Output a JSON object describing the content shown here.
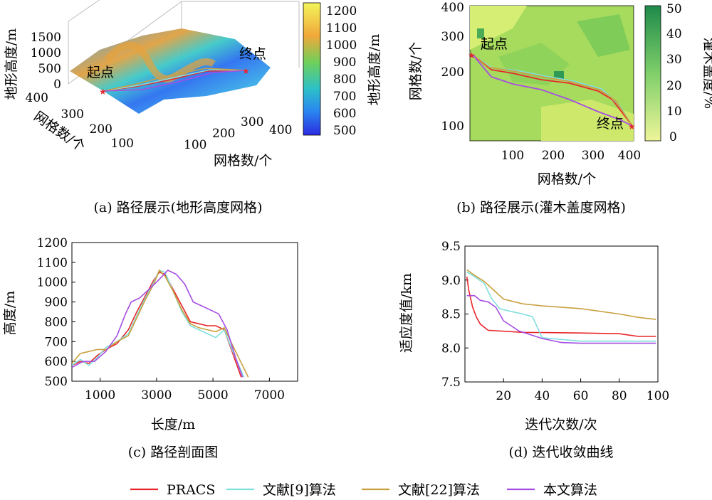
{
  "series": [
    {
      "name": "PRACS",
      "color": "#e8262b"
    },
    {
      "name": "文献[9]算法",
      "color": "#7fe0de"
    },
    {
      "name": "文献[22]算法",
      "color": "#c9a03f"
    },
    {
      "name": "本文算法",
      "color": "#a64de2"
    }
  ],
  "panel_a": {
    "caption": "(a) 路径展示(地形高度网格)",
    "zlabel": "地形高度/m",
    "ylabel": "网格数/个",
    "xlabel": "网格数/个",
    "zticks": [
      "0",
      "500",
      "1000",
      "1500"
    ],
    "yticks": [
      "400",
      "300",
      "200",
      "100"
    ],
    "xticks": [
      "100",
      "200",
      "300",
      "400"
    ],
    "start": "起点",
    "end": "终点",
    "colorbar_label": "地形高度/m",
    "colorbar_ticks": [
      "1200",
      "1100",
      "1000",
      "900",
      "800",
      "700",
      "600",
      "500"
    ]
  },
  "panel_b": {
    "caption": "(b) 路径展示(灌木盖度网格)",
    "ylabel": "网格数/个",
    "xlabel": "网格数/个",
    "yticks": [
      "400",
      "300",
      "200",
      "100"
    ],
    "xticks": [
      "100",
      "200",
      "300",
      "400"
    ],
    "start": "起点",
    "end": "终点",
    "colorbar_label": "灌木盖度/%",
    "colorbar_ticks": [
      "50",
      "40",
      "30",
      "20",
      "10",
      "0"
    ]
  },
  "chart_data": [
    {
      "type": "line",
      "panel": "c",
      "caption": "(c) 路径剖面图",
      "xlabel": "长度/m",
      "ylabel": "高度/m",
      "xlim": [
        0,
        8000
      ],
      "ylim": [
        500,
        1200
      ],
      "xticks": [
        1000,
        3000,
        5000,
        7000
      ],
      "yticks": [
        500,
        600,
        700,
        800,
        900,
        1000,
        1100,
        1200
      ],
      "series": [
        {
          "name": "PRACS",
          "x": [
            0,
            300,
            600,
            900,
            1200,
            1600,
            2000,
            2300,
            2600,
            2900,
            3100,
            3300,
            3600,
            3900,
            4200,
            4500,
            4800,
            5100,
            5400,
            5700,
            6000
          ],
          "y": [
            580,
            600,
            590,
            630,
            660,
            690,
            760,
            850,
            930,
            1010,
            1050,
            1040,
            960,
            880,
            800,
            790,
            780,
            780,
            760,
            640,
            520
          ]
        },
        {
          "name": "文献[9]算法",
          "x": [
            0,
            300,
            600,
            900,
            1200,
            1600,
            2000,
            2300,
            2600,
            2900,
            3100,
            3300,
            3600,
            3900,
            4200,
            4500,
            4800,
            5100,
            5400,
            5700,
            6100
          ],
          "y": [
            580,
            610,
            580,
            620,
            670,
            700,
            740,
            830,
            920,
            1000,
            1060,
            1050,
            950,
            850,
            780,
            760,
            740,
            720,
            760,
            650,
            520
          ]
        },
        {
          "name": "文献[22]算法",
          "x": [
            0,
            300,
            600,
            900,
            1200,
            1600,
            2000,
            2300,
            2600,
            2900,
            3100,
            3300,
            3600,
            3900,
            4200,
            4500,
            4800,
            5100,
            5400,
            5700,
            6250
          ],
          "y": [
            590,
            640,
            650,
            660,
            660,
            700,
            730,
            820,
            910,
            990,
            1060,
            1030,
            950,
            860,
            790,
            770,
            760,
            750,
            770,
            680,
            520
          ]
        },
        {
          "name": "本文算法",
          "x": [
            0,
            400,
            800,
            1200,
            1600,
            1900,
            2100,
            2400,
            2700,
            3000,
            3200,
            3400,
            3700,
            4000,
            4300,
            4600,
            4900,
            5200,
            5500,
            5800,
            6050
          ],
          "y": [
            570,
            600,
            600,
            650,
            730,
            840,
            900,
            920,
            960,
            1000,
            1030,
            1060,
            1040,
            990,
            900,
            880,
            860,
            840,
            760,
            620,
            520
          ]
        }
      ]
    },
    {
      "type": "line",
      "panel": "d",
      "caption": "(d) 迭代收敛曲线",
      "xlabel": "迭代次数/次",
      "ylabel": "适应度值/km",
      "xlim": [
        0,
        100
      ],
      "ylim": [
        7.5,
        9.5
      ],
      "xticks": [
        20,
        40,
        60,
        80,
        100
      ],
      "yticks": [
        7.5,
        8.0,
        8.5,
        9.0,
        9.5
      ],
      "series": [
        {
          "name": "PRACS",
          "x": [
            1,
            2,
            4,
            6,
            8,
            12,
            30,
            60,
            80,
            90,
            99
          ],
          "y": [
            9.05,
            8.85,
            8.6,
            8.45,
            8.35,
            8.26,
            8.23,
            8.22,
            8.21,
            8.17,
            8.17
          ]
        },
        {
          "name": "文献[9]算法",
          "x": [
            1,
            5,
            10,
            14,
            18,
            22,
            30,
            35,
            40,
            60,
            99
          ],
          "y": [
            9.12,
            9.05,
            8.95,
            8.72,
            8.58,
            8.55,
            8.5,
            8.46,
            8.15,
            8.1,
            8.1
          ]
        },
        {
          "name": "文献[22]算法",
          "x": [
            1,
            5,
            10,
            15,
            20,
            30,
            40,
            60,
            80,
            90,
            99
          ],
          "y": [
            9.15,
            9.07,
            8.98,
            8.85,
            8.72,
            8.65,
            8.62,
            8.58,
            8.5,
            8.45,
            8.42
          ]
        },
        {
          "name": "本文算法",
          "x": [
            1,
            5,
            8,
            12,
            16,
            20,
            28,
            40,
            50,
            60,
            99
          ],
          "y": [
            8.77,
            8.77,
            8.7,
            8.68,
            8.6,
            8.4,
            8.25,
            8.14,
            8.08,
            8.07,
            8.07
          ]
        }
      ]
    }
  ]
}
